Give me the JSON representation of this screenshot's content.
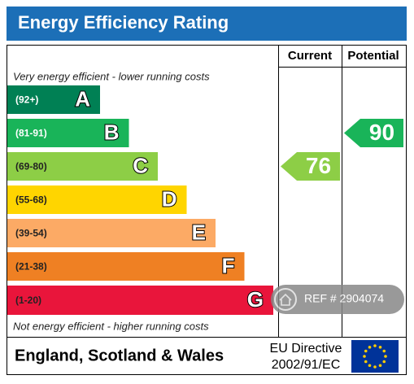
{
  "header": {
    "title": "Energy Efficiency Rating"
  },
  "columns": [
    "Current",
    "Potential"
  ],
  "top_note": "Very energy efficient - lower running costs",
  "bottom_note": "Not energy efficient - higher running costs",
  "bands": [
    {
      "range": "(92+)",
      "letter": "A",
      "color": "#008054"
    },
    {
      "range": "(81-91)",
      "letter": "B",
      "color": "#19b459"
    },
    {
      "range": "(69-80)",
      "letter": "C",
      "color": "#8dce46"
    },
    {
      "range": "(55-68)",
      "letter": "D",
      "color": "#ffd500"
    },
    {
      "range": "(39-54)",
      "letter": "E",
      "color": "#fcaa65"
    },
    {
      "range": "(21-38)",
      "letter": "F",
      "color": "#ef8023"
    },
    {
      "range": "(1-20)",
      "letter": "G",
      "color": "#e9153b"
    }
  ],
  "current": 76,
  "potential": 90,
  "footer": {
    "region": "England, Scotland & Wales",
    "directive": [
      "EU Directive",
      "2002/91/EC"
    ]
  },
  "watermark": "REF # 2904074"
}
